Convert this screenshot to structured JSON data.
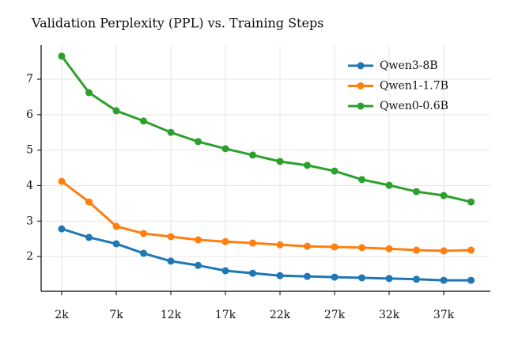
{
  "chart_data": {
    "type": "line",
    "title": "Validation Perplexity (PPL) vs. Training Steps",
    "x": [
      2000,
      4500,
      7000,
      9500,
      12000,
      14500,
      17000,
      19500,
      22000,
      24500,
      27000,
      29500,
      32000,
      34500,
      37000,
      39500
    ],
    "series": [
      {
        "name": "Qwen3-8B",
        "color": "#1f77b4",
        "values": [
          2.78,
          2.54,
          2.36,
          2.09,
          1.87,
          1.75,
          1.6,
          1.53,
          1.46,
          1.44,
          1.42,
          1.4,
          1.38,
          1.36,
          1.33,
          1.33
        ]
      },
      {
        "name": "Qwen1-1.7B",
        "color": "#ff7f0e",
        "values": [
          4.12,
          3.54,
          2.85,
          2.65,
          2.56,
          2.47,
          2.42,
          2.38,
          2.33,
          2.29,
          2.27,
          2.25,
          2.22,
          2.18,
          2.16,
          2.18
        ]
      },
      {
        "name": "Qwen0-0.6B",
        "color": "#2ca02c",
        "values": [
          7.65,
          6.62,
          6.11,
          5.82,
          5.5,
          5.24,
          5.04,
          4.86,
          4.68,
          4.57,
          4.41,
          4.17,
          4.01,
          3.83,
          3.72,
          3.54
        ]
      }
    ],
    "xlim": [
      116,
      41275
    ],
    "xticks": [
      {
        "value": 2000,
        "label": "2k"
      },
      {
        "value": 7000,
        "label": "7k"
      },
      {
        "value": 12000,
        "label": "12k"
      },
      {
        "value": 17000,
        "label": "17k"
      },
      {
        "value": 22000,
        "label": "22k"
      },
      {
        "value": 27000,
        "label": "27k"
      },
      {
        "value": 32000,
        "label": "32k"
      },
      {
        "value": 37000,
        "label": "37k"
      }
    ],
    "ylim": [
      1.02,
      7.96
    ],
    "yticks": [
      2,
      3,
      4,
      5,
      6,
      7
    ],
    "grid": true,
    "legend": "upper-right"
  }
}
